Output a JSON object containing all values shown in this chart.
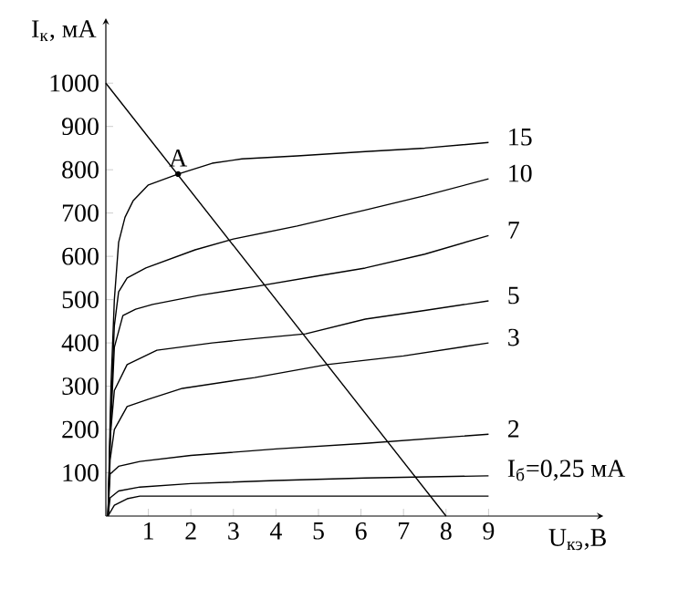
{
  "chart_data": {
    "type": "line",
    "xlabel": "U$_{кэ}$,В",
    "ylabel": "I$_{к}$, мА",
    "xlim": [
      0,
      11.7
    ],
    "ylim": [
      0,
      1150
    ],
    "xticks": [
      1,
      2,
      3,
      4,
      5,
      6,
      7,
      8,
      9
    ],
    "yticks": [
      100,
      200,
      300,
      400,
      500,
      600,
      700,
      800,
      900,
      1000
    ],
    "annotations": [
      {
        "text": "A",
        "x": 1.7,
        "y": 790
      }
    ],
    "series": [
      {
        "name": "15",
        "color": "#000000",
        "x": [
          0.05,
          0.12,
          0.2,
          0.3,
          0.45,
          0.64,
          1.0,
          1.7,
          2.5,
          3.2,
          4.5,
          6.1,
          7.5,
          9
        ],
        "values": [
          0,
          300,
          500,
          632,
          690,
          728,
          765,
          790,
          815,
          825,
          832,
          842,
          850,
          863
        ]
      },
      {
        "name": "10",
        "color": "#000000",
        "x": [
          0.05,
          0.12,
          0.2,
          0.3,
          0.5,
          0.94,
          2.1,
          3,
          4.5,
          6.1,
          7.5,
          9
        ],
        "values": [
          0,
          250,
          440,
          518,
          550,
          573,
          615,
          640,
          670,
          707,
          740,
          779
        ]
      },
      {
        "name": "7",
        "color": "#000000",
        "x": [
          0.05,
          0.12,
          0.2,
          0.4,
          0.7,
          1.1,
          2.2,
          3.5,
          5,
          6.1,
          7.5,
          9
        ],
        "values": [
          0,
          220,
          390,
          463,
          478,
          489,
          510,
          530,
          555,
          573,
          605,
          648
        ]
      },
      {
        "name": "5",
        "color": "#000000",
        "x": [
          0.05,
          0.1,
          0.2,
          0.5,
          1.2,
          2.5,
          3.5,
          4.7,
          6.1,
          7.5,
          9
        ],
        "values": [
          0,
          180,
          290,
          350,
          383,
          400,
          410,
          421,
          455,
          475,
          497
        ]
      },
      {
        "name": "3",
        "color": "#000000",
        "x": [
          0.05,
          0.1,
          0.2,
          0.5,
          1.0,
          1.8,
          3.5,
          5.2,
          7,
          9
        ],
        "values": [
          0,
          130,
          200,
          253,
          270,
          295,
          320,
          350,
          370,
          400
        ]
      },
      {
        "name": "2",
        "color": "#000000",
        "x": [
          0.05,
          0.1,
          0.3,
          0.8,
          2,
          4,
          6.1,
          9
        ],
        "values": [
          0,
          97,
          115,
          126,
          140,
          155,
          168,
          189
        ]
      },
      {
        "name": "I$_{б}$=0,25 мА",
        "color": "#000000",
        "x": [
          0.05,
          0.1,
          0.3,
          0.8,
          2,
          4,
          6.1,
          9
        ],
        "values": [
          0,
          42,
          58,
          67,
          75,
          82,
          88,
          93
        ]
      },
      {
        "color": "#000000",
        "x": [
          0.05,
          0.2,
          0.5,
          0.8,
          2,
          6,
          9
        ],
        "values": [
          0,
          25,
          40,
          46,
          46,
          46,
          46
        ]
      },
      {
        "color": "#000000",
        "x": [
          0,
          8
        ],
        "values": [
          1000,
          0
        ]
      }
    ]
  }
}
